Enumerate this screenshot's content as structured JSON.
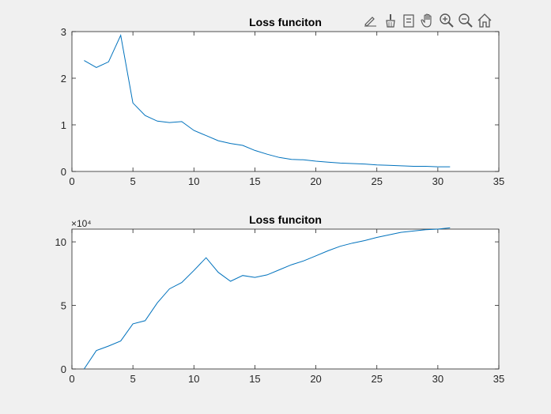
{
  "toolbar": {
    "icons": [
      "brush-edit-icon",
      "data-cursor-brush-icon",
      "data-tips-icon",
      "pan-hand-icon",
      "zoom-in-icon",
      "zoom-out-icon",
      "home-restore-icon"
    ]
  },
  "colors": {
    "background": "#f0f0f0",
    "axes_background": "#ffffff",
    "line": "#0072bd",
    "axis": "#262626"
  },
  "chart_data": [
    {
      "type": "line",
      "title": "Loss funciton",
      "xlabel": "",
      "ylabel": "",
      "xlim": [
        0,
        35
      ],
      "ylim": [
        0,
        3
      ],
      "xticks": [
        "0",
        "5",
        "10",
        "15",
        "20",
        "25",
        "30",
        "35"
      ],
      "yticks": [
        "0",
        "1",
        "2",
        "3"
      ],
      "exponent_label": "",
      "grid": false,
      "series": [
        {
          "x": [
            1,
            2,
            3,
            4,
            5,
            6,
            7,
            8,
            9,
            10,
            11,
            12,
            13,
            14,
            15,
            16,
            17,
            18,
            19,
            20,
            21,
            22,
            23,
            24,
            25,
            26,
            27,
            28,
            29,
            30,
            31
          ],
          "y": [
            2.38,
            2.23,
            2.35,
            2.92,
            1.47,
            1.2,
            1.08,
            1.05,
            1.07,
            0.88,
            0.77,
            0.66,
            0.6,
            0.56,
            0.45,
            0.37,
            0.3,
            0.26,
            0.25,
            0.22,
            0.2,
            0.18,
            0.17,
            0.16,
            0.14,
            0.13,
            0.12,
            0.11,
            0.11,
            0.1,
            0.1
          ]
        }
      ]
    },
    {
      "type": "line",
      "title": "Loss funciton",
      "xlabel": "",
      "ylabel": "",
      "xlim": [
        0,
        35
      ],
      "ylim": [
        0,
        11
      ],
      "xticks": [
        "0",
        "5",
        "10",
        "15",
        "20",
        "25",
        "30",
        "35"
      ],
      "yticks": [
        "0",
        "5",
        "10"
      ],
      "exponent_label": "×10⁴",
      "grid": false,
      "series": [
        {
          "x": [
            1,
            2,
            3,
            4,
            5,
            6,
            7,
            8,
            9,
            10,
            11,
            12,
            13,
            14,
            15,
            16,
            17,
            18,
            19,
            20,
            21,
            22,
            23,
            24,
            25,
            26,
            27,
            28,
            29,
            30,
            31
          ],
          "y": [
            0,
            1.45,
            1.8,
            2.2,
            3.55,
            3.8,
            5.2,
            6.3,
            6.8,
            7.75,
            8.75,
            7.6,
            6.9,
            7.35,
            7.2,
            7.4,
            7.8,
            8.2,
            8.5,
            8.9,
            9.3,
            9.65,
            9.9,
            10.1,
            10.35,
            10.55,
            10.75,
            10.85,
            10.95,
            11.0,
            11.1
          ]
        }
      ]
    }
  ]
}
